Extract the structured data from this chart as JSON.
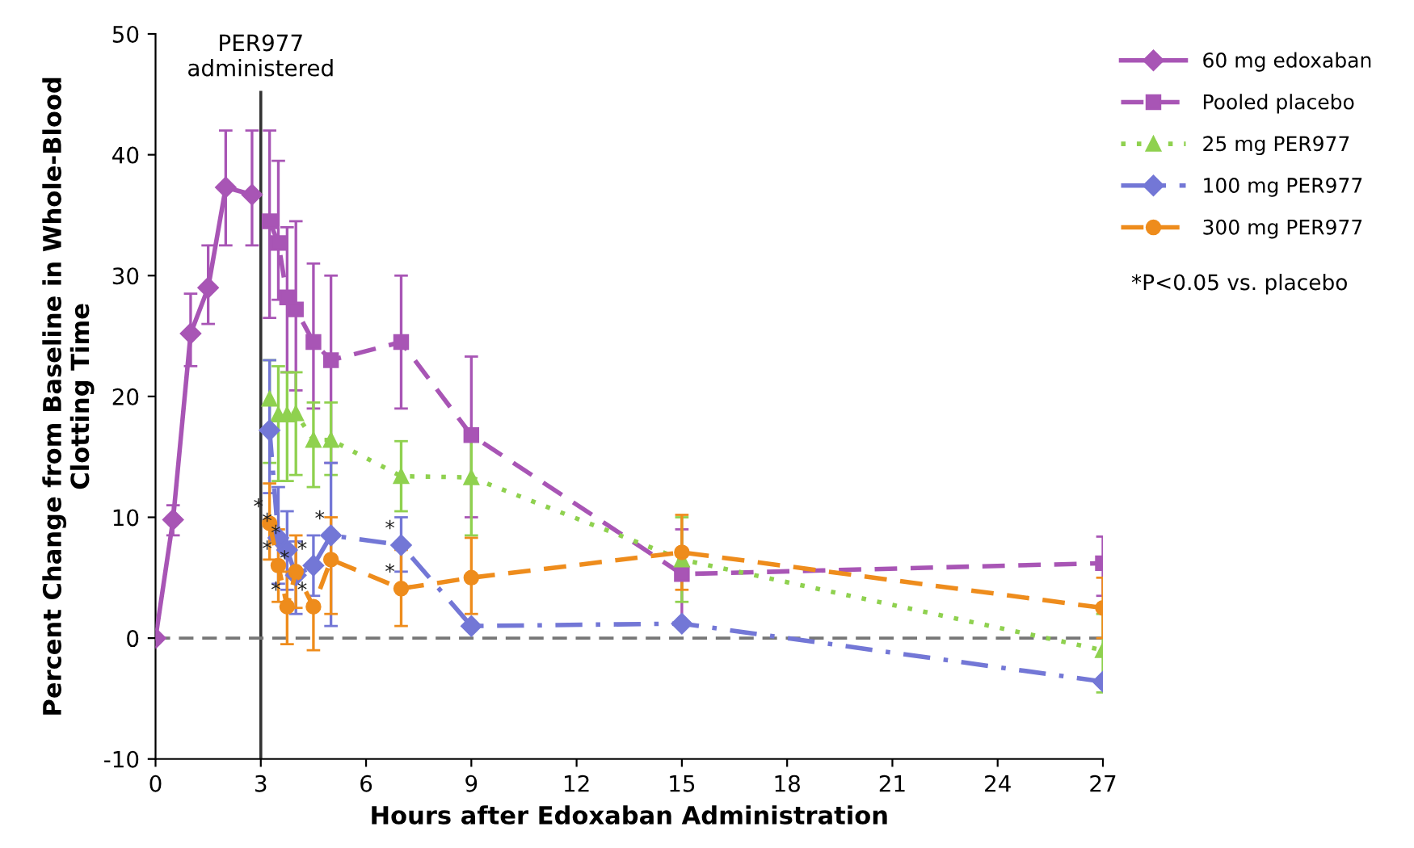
{
  "chart_data": {
    "type": "line",
    "xlabel": "Hours after Edoxaban Administration",
    "ylabel": "Percent Change from Baseline in Whole-Blood\nClotting Time",
    "xlim": [
      0,
      27
    ],
    "xticks": [
      0,
      3,
      6,
      9,
      12,
      15,
      18,
      21,
      24,
      27
    ],
    "ylim": [
      -10,
      50
    ],
    "yticks": [
      -10,
      0,
      10,
      20,
      30,
      40,
      50
    ],
    "grid": false,
    "legend": "top right",
    "series": [
      {
        "name": "60 mg edoxaban",
        "color": "#a855b5",
        "marker": "diamond",
        "line_style": "solid",
        "x": [
          0,
          0.5,
          1,
          1.5,
          2,
          2.75
        ],
        "values": [
          0,
          9.8,
          25.2,
          29,
          37.3,
          36.7
        ],
        "errors": [
          null,
          [
            8.5,
            11
          ],
          [
            22.5,
            28.5
          ],
          [
            26,
            32.5
          ],
          [
            32.5,
            42
          ],
          [
            32.5,
            42
          ]
        ]
      },
      {
        "name": "Pooled placebo",
        "color": "#a855b5",
        "marker": "square",
        "line_style": "dashed",
        "x": [
          3.25,
          3.5,
          3.75,
          4,
          4.5,
          5,
          7,
          9,
          15,
          27
        ],
        "values": [
          34.5,
          32.7,
          28.2,
          27.2,
          24.5,
          23,
          24.5,
          16.8,
          5.3,
          6.2
        ],
        "errors": [
          [
            26.5,
            42
          ],
          [
            28,
            39.5
          ],
          [
            22,
            34
          ],
          [
            20.5,
            34.5
          ],
          [
            19,
            31
          ],
          [
            14.5,
            30
          ],
          [
            19,
            30
          ],
          [
            10,
            23.3
          ],
          [
            1,
            9
          ],
          [
            3.5,
            8.4
          ]
        ]
      },
      {
        "name": "25 mg PER977",
        "color": "#8fd14f",
        "marker": "triangle",
        "line_style": "dotted",
        "x": [
          3.25,
          3.5,
          3.75,
          4,
          4.5,
          5,
          7,
          9,
          15,
          27
        ],
        "values": [
          19.8,
          18.5,
          18.5,
          18.6,
          16.4,
          16.4,
          13.4,
          13.3,
          6.5,
          -1
        ],
        "errors": [
          [
            14.5,
            23
          ],
          [
            13,
            22.5
          ],
          [
            13,
            22
          ],
          [
            13.5,
            22
          ],
          [
            12.5,
            19.5
          ],
          [
            13.5,
            19.5
          ],
          [
            10.5,
            16.3
          ],
          [
            8.5,
            16.3
          ],
          [
            3,
            10
          ],
          [
            -4.5,
            2
          ]
        ]
      },
      {
        "name": "100 mg PER977",
        "color": "#7377d6",
        "marker": "diamond",
        "line_style": "dashdot",
        "x": [
          3.25,
          3.5,
          3.75,
          4,
          4.5,
          5,
          7,
          9,
          15,
          27
        ],
        "values": [
          17.2,
          8.3,
          7.3,
          5.2,
          6,
          8.5,
          7.7,
          1,
          1.2,
          -3.6
        ],
        "errors": [
          [
            12,
            23
          ],
          [
            4.5,
            12.5
          ],
          [
            4,
            10.5
          ],
          [
            2,
            8
          ],
          [
            3.5,
            8.5
          ],
          [
            1,
            14.5
          ],
          [
            5.5,
            10
          ],
          null,
          null,
          null
        ]
      },
      {
        "name": "300 mg PER977",
        "color": "#ee8c1c",
        "marker": "circle",
        "line_style": "dashed",
        "x": [
          3.25,
          3.5,
          3.75,
          4,
          4.5,
          5,
          7,
          9,
          15,
          27
        ],
        "values": [
          9.5,
          6,
          2.6,
          5.5,
          2.6,
          6.5,
          4.1,
          5,
          7.1,
          2.5
        ],
        "errors": [
          [
            6.5,
            12.8
          ],
          [
            3,
            9
          ],
          [
            -0.5,
            5.5
          ],
          [
            2.5,
            8.5
          ],
          [
            -1,
            2.6
          ],
          [
            2,
            10
          ],
          [
            1,
            7.3
          ],
          [
            2,
            8.3
          ],
          [
            4,
            10.2
          ],
          [
            0,
            5
          ]
        ]
      }
    ],
    "ref_lines": [
      {
        "axis": "x",
        "value": 3,
        "label": "PER977\nadministered",
        "color": "#333333",
        "line_style": "solid"
      },
      {
        "axis": "y",
        "value": 0,
        "color": "#777777",
        "line_style": "dashed"
      }
    ],
    "annotations": [
      {
        "text": "*",
        "x": 3.25,
        "y": 9.5
      },
      {
        "text": "*",
        "x": 3.5,
        "y": 8.3
      },
      {
        "text": "*",
        "x": 3.75,
        "y": 7.3
      },
      {
        "text": "*",
        "x": 4,
        "y": 5.2
      },
      {
        "text": "*",
        "x": 4.5,
        "y": 6
      },
      {
        "text": "*",
        "x": 5,
        "y": 8.5
      },
      {
        "text": "*",
        "x": 7,
        "y": 7.7
      },
      {
        "text": "*",
        "x": 3.5,
        "y": 6
      },
      {
        "text": "*",
        "x": 3.75,
        "y": 2.6
      },
      {
        "text": "*",
        "x": 4.5,
        "y": 2.6
      },
      {
        "text": "*",
        "x": 7,
        "y": 4.1
      },
      "*P<0.05 vs. placebo"
    ]
  }
}
